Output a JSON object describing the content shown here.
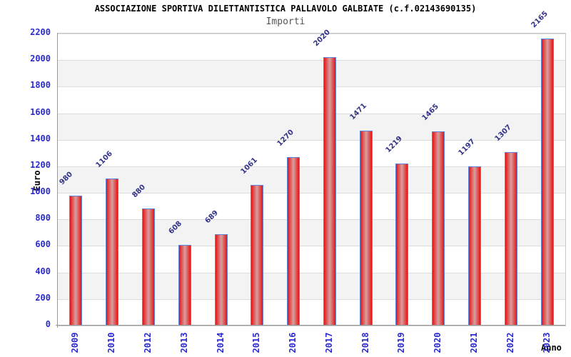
{
  "chart_data": {
    "type": "bar",
    "title": "ASSOCIAZIONE SPORTIVA DILETTANTISTICA PALLAVOLO GALBIATE (c.f.02143690135)",
    "subtitle": "Importi",
    "xlabel": "Anno",
    "ylabel": "Euro",
    "categories": [
      "2009",
      "2010",
      "2012",
      "2013",
      "2014",
      "2015",
      "2016",
      "2017",
      "2018",
      "2019",
      "2020",
      "2021",
      "2022",
      "2023"
    ],
    "values": [
      980,
      1106,
      880,
      608,
      689,
      1061,
      1270,
      2020,
      1471,
      1219,
      1465,
      1197,
      1307,
      2165
    ],
    "ylim": [
      0,
      2200
    ],
    "ytick_step": 200,
    "yticks": [
      0,
      200,
      400,
      600,
      800,
      1000,
      1200,
      1400,
      1600,
      1800,
      2000,
      2200
    ],
    "grid": true,
    "legend": "none",
    "bands": "alternating horizontal stripes every 200 units",
    "colors": {
      "bar_edge": "#e81414",
      "bar_center": "#d6a0a0",
      "bar_border": "#5b87e0",
      "tick_label": "#2a2ace",
      "value_label": "#333388",
      "title": "#000000",
      "subtitle": "#555555",
      "band_gray": "#f3f3f3",
      "gridline": "#dcdcdc",
      "axis_line": "#9a9a9a"
    }
  }
}
